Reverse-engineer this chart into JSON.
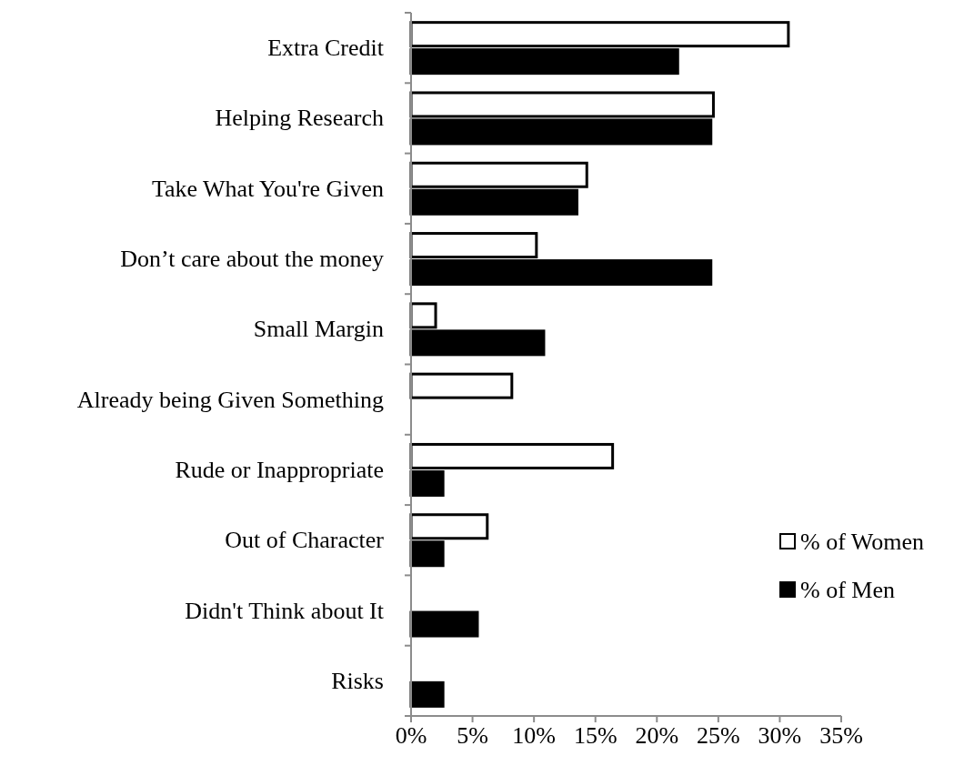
{
  "chart_data": {
    "type": "bar",
    "orientation": "horizontal",
    "categories": [
      "Extra Credit",
      "Helping Research",
      "Take What You're Given",
      "Don’t care about the money",
      "Small Margin",
      "Already being Given Something",
      "Rude or Inappropriate",
      "Out of Character",
      "Didn't Think about It",
      "Risks"
    ],
    "series": [
      {
        "name": "% of Women",
        "color": "#ffffff",
        "values": [
          30.7,
          24.6,
          14.3,
          10.2,
          2.0,
          8.2,
          16.4,
          6.2,
          null,
          null
        ]
      },
      {
        "name": "% of Men",
        "color": "#000000",
        "values": [
          21.7,
          24.4,
          13.5,
          24.4,
          10.8,
          null,
          2.6,
          2.6,
          5.4,
          2.6
        ]
      }
    ],
    "xlim": [
      0,
      35
    ],
    "xticks": [
      {
        "value": 0,
        "label": "0%"
      },
      {
        "value": 5,
        "label": "5%"
      },
      {
        "value": 10,
        "label": "10%"
      },
      {
        "value": 15,
        "label": "15%"
      },
      {
        "value": 20,
        "label": "20%"
      },
      {
        "value": 25,
        "label": "25%"
      },
      {
        "value": 30,
        "label": "30%"
      },
      {
        "value": 35,
        "label": "35%"
      }
    ],
    "grid": false,
    "legend": "right"
  }
}
